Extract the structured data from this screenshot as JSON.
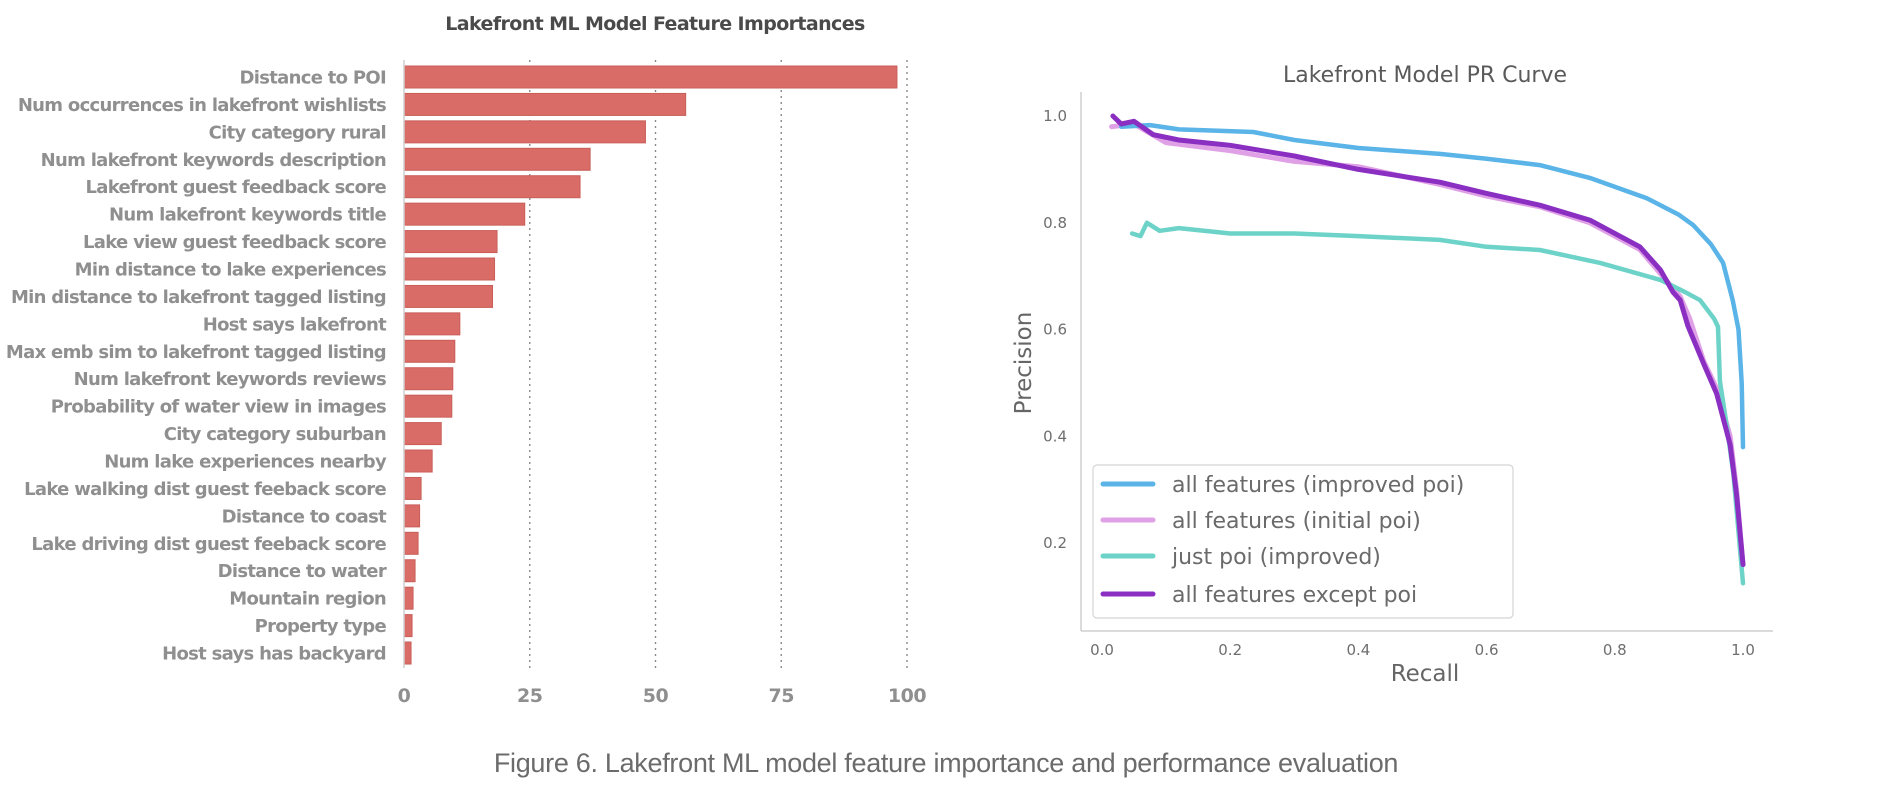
{
  "caption": "Figure 6. Lakefront ML model feature importance and performance evaluation",
  "chart_data": [
    {
      "type": "bar",
      "orientation": "horizontal",
      "title": "Lakefront ML Model Feature Importances",
      "xlabel": "",
      "ylabel": "",
      "xlim": [
        0,
        100
      ],
      "xticks": [
        "0",
        "25",
        "50",
        "75",
        "100"
      ],
      "grid": "vertical dotted",
      "bar_color": "#d96c66",
      "categories": [
        "Distance to POI",
        "Num occurrences in lakefront wishlists",
        "City category rural",
        "Num lakefront keywords description",
        "Lakefront guest feedback score",
        "Num lakefront keywords title",
        "Lake view guest feedback score",
        "Min distance to lake experiences",
        "Min distance to lakefront tagged listing",
        "Host says lakefront",
        "Max emb sim to lakefront tagged listing",
        "Num lakefront keywords reviews",
        "Probability of water view in images",
        "City category suburban",
        "Num lake experiences nearby",
        "Lake walking dist guest feeback score",
        "Distance to coast",
        "Lake driving dist guest feeback score",
        "Distance to water",
        "Mountain region",
        "Property type",
        "Host says has backyard"
      ],
      "values": [
        98,
        56,
        48,
        37,
        35,
        24,
        18.5,
        18,
        17.6,
        11.1,
        10.1,
        9.7,
        9.5,
        7.4,
        5.6,
        3.4,
        3.1,
        2.8,
        2.2,
        1.8,
        1.6,
        1.4
      ]
    },
    {
      "type": "line",
      "title": "Lakefront Model PR Curve",
      "xlabel": "Recall",
      "ylabel": "Precision",
      "xlim": [
        0,
        1.0
      ],
      "ylim": [
        0.1,
        1.0
      ],
      "xticks": [
        "0.0",
        "0.2",
        "0.4",
        "0.6",
        "0.8",
        "1.0"
      ],
      "yticks": [
        "0.2",
        "0.4",
        "0.6",
        "0.8",
        "1.0"
      ],
      "yticks_values": [
        0.2,
        0.4,
        0.6,
        0.8,
        1.0
      ],
      "xticks_values": [
        0,
        0.2,
        0.4,
        0.6,
        0.8,
        1.0
      ],
      "grid": false,
      "legend": "lower-left",
      "series": [
        {
          "name": "all features (improved poi)",
          "color": "#5ab4e8",
          "x": [
            0.03,
            0.075,
            0.12,
            0.236,
            0.3,
            0.4,
            0.527,
            0.6,
            0.683,
            0.761,
            0.85,
            0.9,
            0.922,
            0.95,
            0.969,
            0.984,
            0.993,
            0.998,
            1.0
          ],
          "y": [
            0.98,
            0.983,
            0.975,
            0.97,
            0.955,
            0.94,
            0.929,
            0.92,
            0.908,
            0.884,
            0.846,
            0.815,
            0.796,
            0.76,
            0.725,
            0.655,
            0.6,
            0.5,
            0.38
          ]
        },
        {
          "name": "all features (initial poi)",
          "color": "#e0a0e6",
          "x": [
            0.015,
            0.05,
            0.1,
            0.2,
            0.3,
            0.4,
            0.527,
            0.6,
            0.683,
            0.761,
            0.839,
            0.871,
            0.902,
            0.917,
            0.939,
            0.959,
            0.98,
            0.99,
            1.0
          ],
          "y": [
            0.98,
            0.985,
            0.95,
            0.935,
            0.915,
            0.905,
            0.872,
            0.85,
            0.83,
            0.8,
            0.75,
            0.705,
            0.662,
            0.62,
            0.54,
            0.49,
            0.4,
            0.3,
            0.16
          ]
        },
        {
          "name": "just poi (improved)",
          "color": "#6dd3c8",
          "x": [
            0.047,
            0.06,
            0.07,
            0.09,
            0.12,
            0.2,
            0.3,
            0.4,
            0.527,
            0.6,
            0.683,
            0.777,
            0.871,
            0.91,
            0.933,
            0.955,
            0.961,
            0.964,
            0.974,
            0.985,
            1.0
          ],
          "y": [
            0.78,
            0.775,
            0.8,
            0.785,
            0.79,
            0.78,
            0.78,
            0.775,
            0.768,
            0.755,
            0.749,
            0.725,
            0.693,
            0.67,
            0.655,
            0.62,
            0.605,
            0.504,
            0.425,
            0.33,
            0.125
          ]
        },
        {
          "name": "all features except poi",
          "color": "#8a2fc2",
          "x": [
            0.017,
            0.03,
            0.05,
            0.08,
            0.12,
            0.2,
            0.3,
            0.4,
            0.527,
            0.6,
            0.683,
            0.761,
            0.839,
            0.871,
            0.891,
            0.902,
            0.914,
            0.939,
            0.959,
            0.98,
            0.99,
            1.0
          ],
          "y": [
            1.0,
            0.985,
            0.99,
            0.965,
            0.955,
            0.945,
            0.925,
            0.9,
            0.876,
            0.855,
            0.833,
            0.805,
            0.755,
            0.712,
            0.67,
            0.655,
            0.607,
            0.535,
            0.48,
            0.384,
            0.29,
            0.16
          ]
        }
      ]
    }
  ]
}
